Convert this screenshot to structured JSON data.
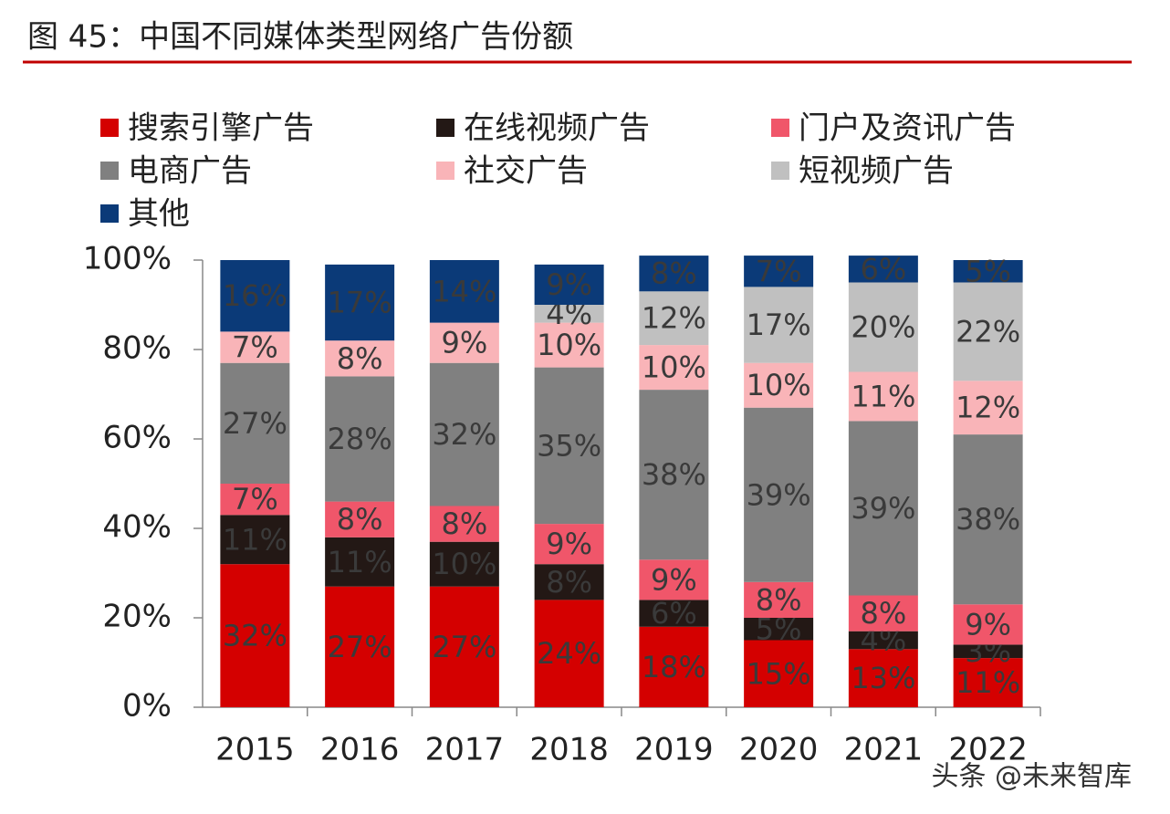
{
  "chart_data": {
    "type": "stacked_bar",
    "title": "图 45：中国不同媒体类型网络广告份额",
    "categories": [
      "2015",
      "2016",
      "2017",
      "2018",
      "2019",
      "2020",
      "2021",
      "2022"
    ],
    "series": [
      {
        "name": "搜索引擎广告",
        "color": "#d40000",
        "values": [
          32,
          27,
          27,
          24,
          18,
          15,
          13,
          11
        ],
        "value_labels": [
          "32%",
          "27%",
          "27%",
          "24%",
          "18%",
          "15%",
          "13%",
          "11%"
        ]
      },
      {
        "name": "在线视频广告",
        "color": "#231815",
        "values": [
          11,
          11,
          10,
          8,
          6,
          5,
          4,
          3
        ],
        "value_labels": [
          "11%",
          "11%",
          "10%",
          "8%",
          "6%",
          "5%",
          "4%",
          "3%"
        ]
      },
      {
        "name": "门户及资讯广告",
        "color": "#f0566a",
        "values": [
          7,
          8,
          8,
          9,
          9,
          8,
          8,
          9
        ],
        "value_labels": [
          "7%",
          "8%",
          "8%",
          "9%",
          "9%",
          "8%",
          "8%",
          "9%"
        ]
      },
      {
        "name": "电商广告",
        "color": "#808080",
        "values": [
          27,
          28,
          32,
          35,
          38,
          39,
          39,
          38
        ],
        "value_labels": [
          "27%",
          "28%",
          "32%",
          "35%",
          "38%",
          "39%",
          "39%",
          "38%"
        ]
      },
      {
        "name": "社交广告",
        "color": "#f9b4b8",
        "values": [
          7,
          8,
          9,
          10,
          10,
          10,
          11,
          12
        ],
        "value_labels": [
          "7%",
          "8%",
          "9%",
          "10%",
          "10%",
          "10%",
          "11%",
          "12%"
        ]
      },
      {
        "name": "短视频广告",
        "color": "#c0c0c0",
        "values": [
          null,
          null,
          null,
          4,
          12,
          17,
          20,
          22
        ],
        "value_labels": [
          null,
          null,
          null,
          "4%",
          "12%",
          "17%",
          "20%",
          "22%"
        ]
      },
      {
        "name": "其他",
        "color": "#0b3a78",
        "values": [
          16,
          17,
          14,
          9,
          8,
          7,
          6,
          5
        ],
        "value_labels": [
          "16%",
          "17%",
          "14%",
          "9%",
          "8%",
          "7%",
          "6%",
          "5%"
        ]
      }
    ],
    "ylim": [
      0,
      100
    ],
    "yticks": [
      {
        "value": 0,
        "label": "0%"
      },
      {
        "value": 20,
        "label": "20%"
      },
      {
        "value": 40,
        "label": "40%"
      },
      {
        "value": 60,
        "label": "60%"
      },
      {
        "value": 80,
        "label": "80%"
      },
      {
        "value": 100,
        "label": "100%"
      }
    ],
    "legend": "top-left",
    "watermark": "头条 @未来智库"
  }
}
